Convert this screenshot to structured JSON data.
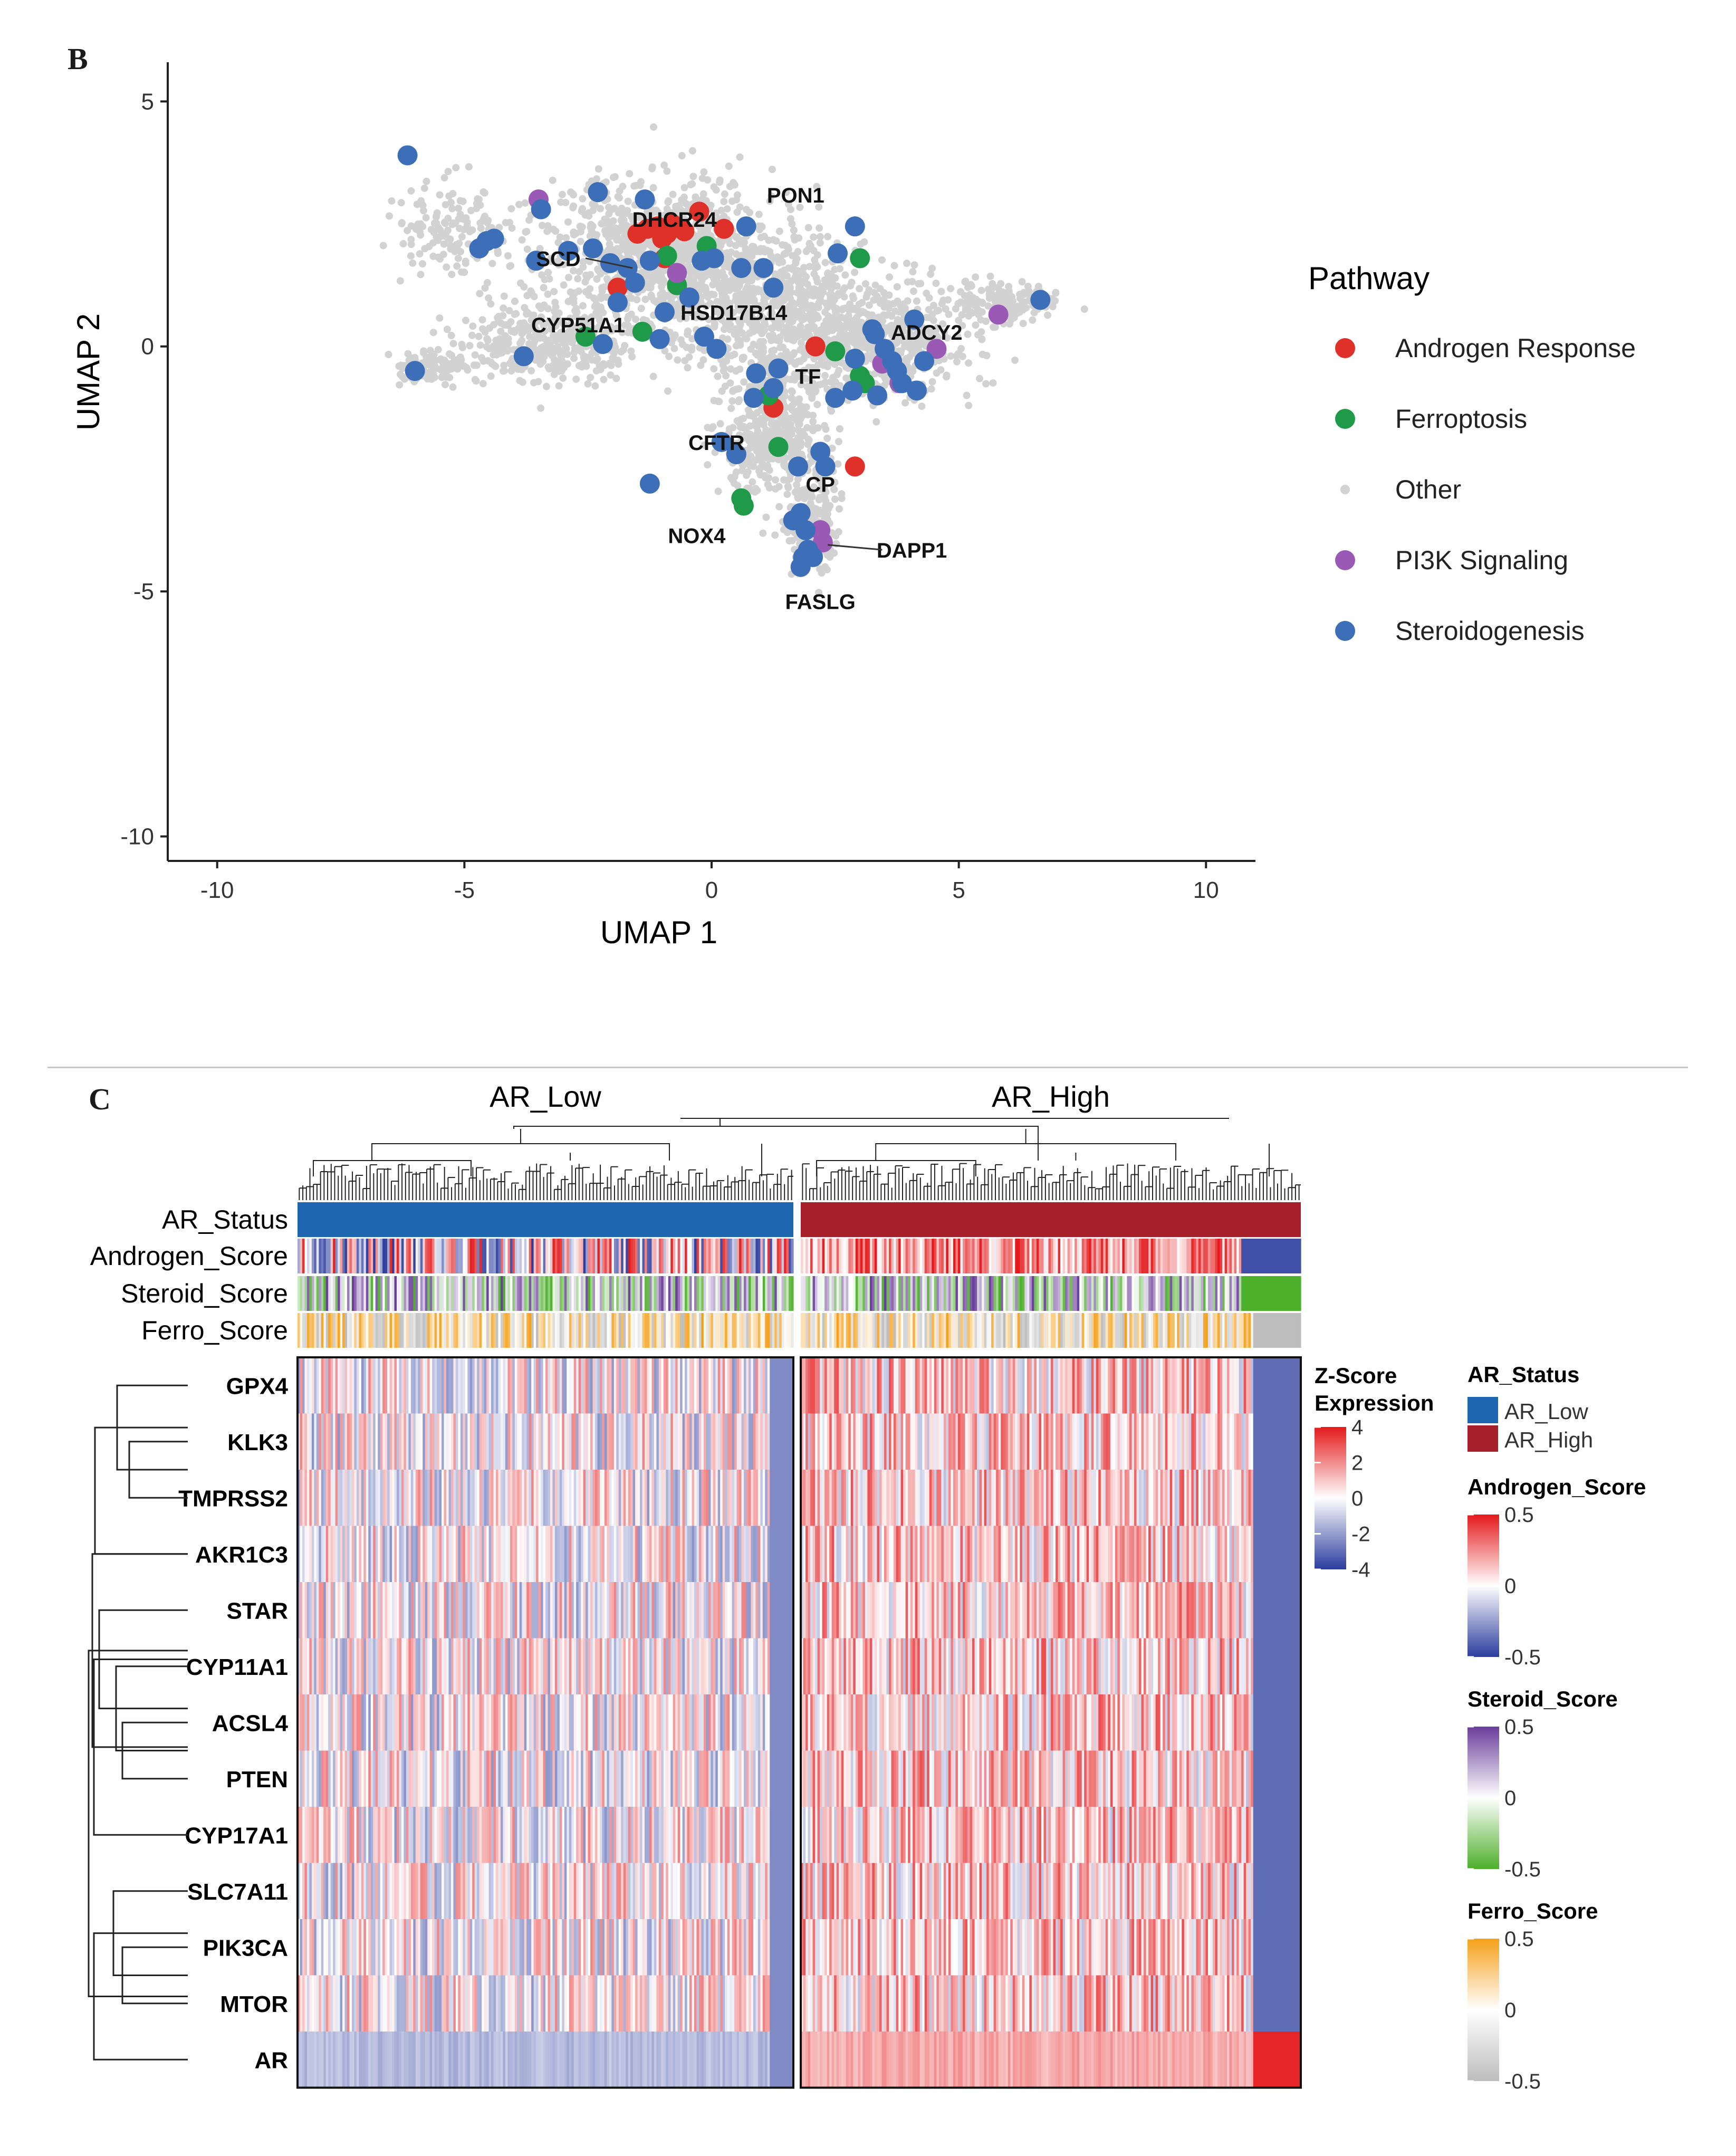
{
  "panel_b": {
    "letter": "B"
  },
  "panel_c": {
    "letter": "C"
  },
  "chart_data": [
    {
      "type": "scatter",
      "xlabel": "UMAP 1",
      "ylabel": "UMAP 2",
      "xlim": [
        -11,
        11
      ],
      "ylim": [
        -10.5,
        5.8
      ],
      "xticks": [
        -10,
        -5,
        0,
        5,
        10
      ],
      "yticks": [
        -10,
        -5,
        0,
        5
      ],
      "grid": false,
      "legend": {
        "title": "Pathway",
        "placement": "right",
        "entries": [
          {
            "name": "Androgen Response",
            "color": "#e0302a"
          },
          {
            "name": "Ferroptosis",
            "color": "#1e9a48"
          },
          {
            "name": "Other",
            "color": "#d2d2d2"
          },
          {
            "name": "PI3K Signaling",
            "color": "#9b59b6"
          },
          {
            "name": "Steroidogenesis",
            "color": "#3d6fb8"
          }
        ]
      },
      "annotations": [
        {
          "label": "PON1",
          "x": 1.7,
          "y": 3.1
        },
        {
          "label": "DHCR24",
          "x": -0.75,
          "y": 2.6
        },
        {
          "label": "SCD",
          "x": -3.1,
          "y": 1.8
        },
        {
          "label": "HSD17B14",
          "x": 0.45,
          "y": 0.7
        },
        {
          "label": "CYP51A1",
          "x": -2.7,
          "y": 0.45
        },
        {
          "label": "ADCY2",
          "x": 4.35,
          "y": 0.3
        },
        {
          "label": "TF",
          "x": 1.95,
          "y": -0.6
        },
        {
          "label": "CFTR",
          "x": 0.1,
          "y": -1.95
        },
        {
          "label": "CP",
          "x": 2.2,
          "y": -2.8
        },
        {
          "label": "NOX4",
          "x": -0.3,
          "y": -3.85
        },
        {
          "label": "DAPP1",
          "x": 4.05,
          "y": -4.15
        },
        {
          "label": "FASLG",
          "x": 2.2,
          "y": -5.2
        }
      ],
      "series": [
        {
          "name": "Androgen Response",
          "points": [
            [
              -1.5,
              2.3
            ],
            [
              -1.3,
              2.4
            ],
            [
              -1.1,
              2.45
            ],
            [
              -0.9,
              2.3
            ],
            [
              -1.0,
              2.2
            ],
            [
              -0.8,
              2.5
            ],
            [
              -0.55,
              2.35
            ],
            [
              0.25,
              2.4
            ],
            [
              -0.25,
              2.75
            ],
            [
              -0.95,
              1.8
            ],
            [
              -1.9,
              1.2
            ],
            [
              2.1,
              0.0
            ],
            [
              1.25,
              -1.25
            ],
            [
              2.9,
              -2.45
            ]
          ]
        },
        {
          "name": "Ferroptosis",
          "points": [
            [
              -0.9,
              1.85
            ],
            [
              -0.1,
              2.05
            ],
            [
              -0.7,
              1.25
            ],
            [
              -1.4,
              0.3
            ],
            [
              -2.55,
              0.2
            ],
            [
              3.0,
              1.8
            ],
            [
              2.5,
              -0.1
            ],
            [
              3.0,
              -0.6
            ],
            [
              3.1,
              -0.75
            ],
            [
              1.15,
              -1.0
            ],
            [
              1.35,
              -2.05
            ],
            [
              0.6,
              -3.1
            ],
            [
              0.65,
              -3.25
            ]
          ]
        },
        {
          "name": "PI3K Signaling",
          "points": [
            [
              -3.5,
              3.0
            ],
            [
              -0.7,
              1.5
            ],
            [
              3.45,
              -0.35
            ],
            [
              3.8,
              -0.75
            ],
            [
              4.55,
              -0.05
            ],
            [
              5.8,
              0.65
            ],
            [
              2.2,
              -3.75
            ],
            [
              2.25,
              -4.0
            ]
          ]
        },
        {
          "name": "Steroidogenesis",
          "points": [
            [
              -6.15,
              3.9
            ],
            [
              -4.7,
              2.0
            ],
            [
              -4.55,
              2.15
            ],
            [
              -4.4,
              2.2
            ],
            [
              -3.45,
              2.8
            ],
            [
              -3.55,
              1.75
            ],
            [
              -2.9,
              1.95
            ],
            [
              -2.3,
              3.15
            ],
            [
              -2.4,
              2.0
            ],
            [
              -2.05,
              1.7
            ],
            [
              -1.7,
              1.6
            ],
            [
              -1.9,
              0.9
            ],
            [
              -1.55,
              1.3
            ],
            [
              -1.25,
              1.75
            ],
            [
              -1.35,
              3.0
            ],
            [
              -0.2,
              1.75
            ],
            [
              0.05,
              1.8
            ],
            [
              0.7,
              2.45
            ],
            [
              0.6,
              1.6
            ],
            [
              -0.45,
              1.0
            ],
            [
              -0.95,
              0.7
            ],
            [
              -0.15,
              0.2
            ],
            [
              1.05,
              1.6
            ],
            [
              1.25,
              1.2
            ],
            [
              0.1,
              -0.05
            ],
            [
              -1.05,
              0.15
            ],
            [
              -2.2,
              0.05
            ],
            [
              -3.8,
              -0.2
            ],
            [
              -6.0,
              -0.5
            ],
            [
              1.35,
              -0.45
            ],
            [
              1.25,
              -0.85
            ],
            [
              0.9,
              -0.55
            ],
            [
              0.85,
              -1.05
            ],
            [
              0.2,
              -1.95
            ],
            [
              0.5,
              -2.2
            ],
            [
              2.2,
              -2.15
            ],
            [
              2.3,
              -2.45
            ],
            [
              1.75,
              -2.45
            ],
            [
              2.5,
              -1.05
            ],
            [
              2.85,
              -0.9
            ],
            [
              3.35,
              -1.0
            ],
            [
              2.9,
              -0.25
            ],
            [
              3.25,
              0.35
            ],
            [
              3.3,
              0.25
            ],
            [
              3.5,
              -0.05
            ],
            [
              3.65,
              -0.3
            ],
            [
              4.1,
              0.55
            ],
            [
              4.3,
              -0.3
            ],
            [
              4.15,
              -0.9
            ],
            [
              3.85,
              -0.75
            ],
            [
              3.75,
              -0.5
            ],
            [
              2.55,
              1.9
            ],
            [
              2.9,
              2.45
            ],
            [
              6.65,
              0.95
            ],
            [
              -1.25,
              -2.8
            ],
            [
              1.65,
              -3.55
            ],
            [
              1.8,
              -3.4
            ],
            [
              1.9,
              -3.75
            ],
            [
              1.85,
              -4.3
            ],
            [
              1.8,
              -4.5
            ],
            [
              1.95,
              -4.15
            ],
            [
              2.05,
              -4.3
            ]
          ]
        },
        {
          "name": "Other",
          "points": []
        }
      ]
    },
    {
      "type": "heatmap",
      "column_groups": [
        "AR_Low",
        "AR_High"
      ],
      "annotation_rows": [
        "AR_Status",
        "Androgen_Score",
        "Steroid_Score",
        "Ferro_Score"
      ],
      "rows": [
        "GPX4",
        "KLK3",
        "TMPRSS2",
        "AKR1C3",
        "STAR",
        "CYP11A1",
        "ACSL4",
        "PTEN",
        "CYP17A1",
        "SLC7A11",
        "PIK3CA",
        "MTOR",
        "AR"
      ],
      "legends": [
        {
          "title": "Z-Score Expression",
          "ticks": [
            "4",
            "2",
            "0",
            "-2",
            "-4"
          ],
          "colors": [
            "#e41a1c",
            "#ffffff",
            "#2b3d9e"
          ]
        },
        {
          "title": "AR_Status",
          "entries": [
            {
              "name": "AR_Low",
              "color": "#1f66b0"
            },
            {
              "name": "AR_High",
              "color": "#a51f2b"
            }
          ]
        },
        {
          "title": "Androgen_Score",
          "ticks": [
            "0.5",
            "0",
            "-0.5"
          ],
          "colors": [
            "#e41a1c",
            "#ffffff",
            "#2b3d9e"
          ]
        },
        {
          "title": "Steroid_Score",
          "ticks": [
            "0.5",
            "0",
            "-0.5"
          ],
          "colors": [
            "#6a3d9a",
            "#ffffff",
            "#4daf2a"
          ]
        },
        {
          "title": "Ferro_Score",
          "ticks": [
            "0.5",
            "0",
            "-0.5"
          ],
          "colors": [
            "#f5a01a",
            "#ffffff",
            "#bdbdbd"
          ]
        }
      ]
    }
  ]
}
